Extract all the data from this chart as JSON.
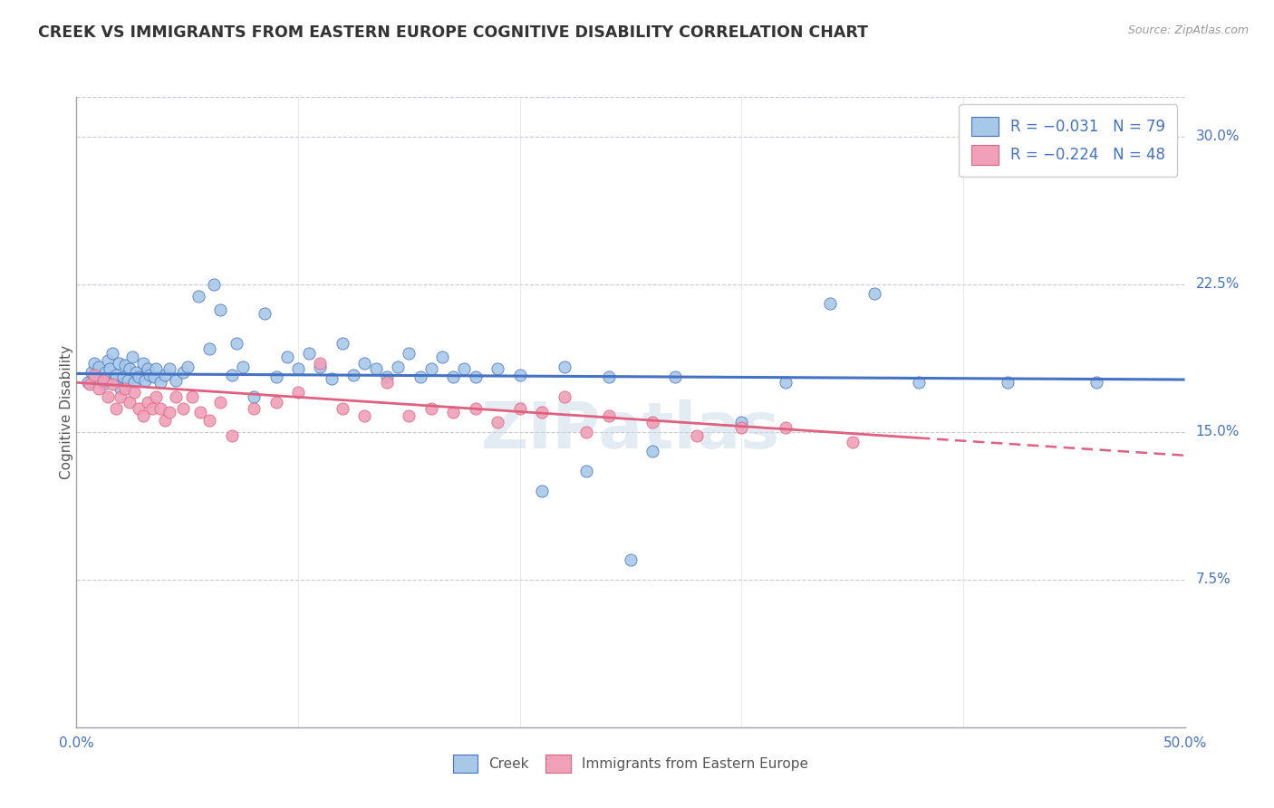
{
  "title": "CREEK VS IMMIGRANTS FROM EASTERN EUROPE COGNITIVE DISABILITY CORRELATION CHART",
  "source": "Source: ZipAtlas.com",
  "ylabel": "Cognitive Disability",
  "xlim": [
    0.0,
    0.5
  ],
  "ylim": [
    0.0,
    0.32
  ],
  "xticks": [
    0.0,
    0.1,
    0.2,
    0.3,
    0.4,
    0.5
  ],
  "xticklabels": [
    "0.0%",
    "",
    "",
    "",
    "",
    "50.0%"
  ],
  "ytick_vals": [
    0.075,
    0.15,
    0.225,
    0.3
  ],
  "ytick_labels_right": [
    "7.5%",
    "15.0%",
    "22.5%",
    "30.0%"
  ],
  "legend_r1": "-0.031",
  "legend_n1": "79",
  "legend_r2": "-0.224",
  "legend_n2": "48",
  "color_creek": "#a8c8e8",
  "color_immigrants": "#f0a0b8",
  "color_creek_line": "#4472c4",
  "color_immigrants_line": "#e06080",
  "background_color": "#ffffff",
  "creek_scatter_x": [
    0.005,
    0.007,
    0.008,
    0.009,
    0.01,
    0.01,
    0.012,
    0.013,
    0.014,
    0.015,
    0.016,
    0.017,
    0.018,
    0.019,
    0.02,
    0.021,
    0.022,
    0.023,
    0.024,
    0.025,
    0.026,
    0.027,
    0.028,
    0.03,
    0.031,
    0.032,
    0.033,
    0.035,
    0.036,
    0.038,
    0.04,
    0.042,
    0.045,
    0.048,
    0.05,
    0.055,
    0.06,
    0.062,
    0.065,
    0.07,
    0.072,
    0.075,
    0.08,
    0.085,
    0.09,
    0.095,
    0.1,
    0.105,
    0.11,
    0.115,
    0.12,
    0.125,
    0.13,
    0.135,
    0.14,
    0.145,
    0.15,
    0.155,
    0.16,
    0.165,
    0.17,
    0.175,
    0.18,
    0.19,
    0.2,
    0.21,
    0.22,
    0.23,
    0.24,
    0.25,
    0.26,
    0.27,
    0.3,
    0.32,
    0.34,
    0.36,
    0.38,
    0.42,
    0.46
  ],
  "creek_scatter_y": [
    0.175,
    0.18,
    0.185,
    0.178,
    0.176,
    0.183,
    0.174,
    0.18,
    0.186,
    0.182,
    0.19,
    0.176,
    0.179,
    0.185,
    0.172,
    0.178,
    0.184,
    0.176,
    0.182,
    0.188,
    0.175,
    0.18,
    0.178,
    0.185,
    0.176,
    0.182,
    0.179,
    0.178,
    0.182,
    0.175,
    0.179,
    0.182,
    0.176,
    0.18,
    0.183,
    0.219,
    0.192,
    0.225,
    0.212,
    0.179,
    0.195,
    0.183,
    0.168,
    0.21,
    0.178,
    0.188,
    0.182,
    0.19,
    0.183,
    0.177,
    0.195,
    0.179,
    0.185,
    0.182,
    0.178,
    0.183,
    0.19,
    0.178,
    0.182,
    0.188,
    0.178,
    0.182,
    0.178,
    0.182,
    0.179,
    0.12,
    0.183,
    0.13,
    0.178,
    0.085,
    0.14,
    0.178,
    0.155,
    0.175,
    0.215,
    0.22,
    0.175,
    0.175,
    0.175
  ],
  "imm_scatter_x": [
    0.006,
    0.008,
    0.01,
    0.012,
    0.014,
    0.016,
    0.018,
    0.02,
    0.022,
    0.024,
    0.026,
    0.028,
    0.03,
    0.032,
    0.034,
    0.036,
    0.038,
    0.04,
    0.042,
    0.045,
    0.048,
    0.052,
    0.056,
    0.06,
    0.065,
    0.07,
    0.08,
    0.09,
    0.1,
    0.11,
    0.12,
    0.13,
    0.14,
    0.15,
    0.16,
    0.17,
    0.18,
    0.19,
    0.2,
    0.21,
    0.22,
    0.23,
    0.24,
    0.26,
    0.28,
    0.3,
    0.32,
    0.35
  ],
  "imm_scatter_y": [
    0.174,
    0.179,
    0.172,
    0.176,
    0.168,
    0.174,
    0.162,
    0.168,
    0.172,
    0.165,
    0.17,
    0.162,
    0.158,
    0.165,
    0.162,
    0.168,
    0.162,
    0.156,
    0.16,
    0.168,
    0.162,
    0.168,
    0.16,
    0.156,
    0.165,
    0.148,
    0.162,
    0.165,
    0.17,
    0.185,
    0.162,
    0.158,
    0.175,
    0.158,
    0.162,
    0.16,
    0.162,
    0.155,
    0.162,
    0.16,
    0.168,
    0.15,
    0.158,
    0.155,
    0.148,
    0.152,
    0.152,
    0.145
  ],
  "creek_trendline_x": [
    0.0,
    0.5
  ],
  "creek_trendline_y": [
    0.1795,
    0.1765
  ],
  "imm_trendline_x": [
    0.0,
    0.5
  ],
  "imm_trendline_y": [
    0.175,
    0.138
  ],
  "watermark": "ZIPatlas",
  "legend_label1": "Creek",
  "legend_label2": "Immigrants from Eastern Europe"
}
